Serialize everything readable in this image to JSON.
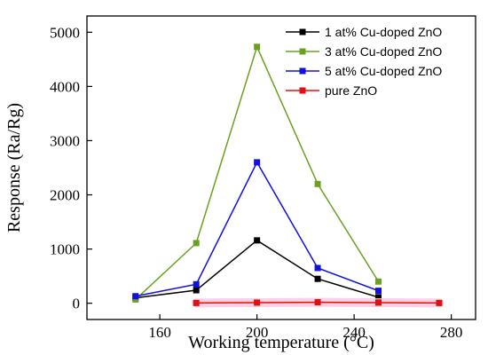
{
  "chart_data": {
    "type": "line",
    "xlabel": "Working  temperature (°C)",
    "ylabel": "Response (Ra/Rg)",
    "xlim": [
      130,
      290
    ],
    "ylim": [
      -300,
      5300
    ],
    "xticks": [
      160,
      200,
      240,
      280
    ],
    "yticks": [
      0,
      1000,
      2000,
      3000,
      4000,
      5000
    ],
    "legend_position": "top-right",
    "series": [
      {
        "name": "1 at% Cu-doped ZnO",
        "color": "#000000",
        "x": [
          150,
          175,
          200,
          225,
          250
        ],
        "y": [
          100,
          240,
          1160,
          450,
          110
        ]
      },
      {
        "name": "3 at% Cu-doped ZnO",
        "color": "#6aa121",
        "x": [
          150,
          175,
          200,
          225,
          250
        ],
        "y": [
          70,
          1110,
          4730,
          2200,
          400
        ]
      },
      {
        "name": "5 at% Cu-doped ZnO",
        "color": "#1010e0",
        "x": [
          150,
          175,
          200,
          225,
          250
        ],
        "y": [
          130,
          350,
          2600,
          650,
          230
        ]
      },
      {
        "name": "pure ZnO",
        "color": "#e01010",
        "x": [
          175,
          200,
          225,
          250,
          275
        ],
        "y": [
          5,
          12,
          18,
          12,
          5
        ]
      }
    ]
  }
}
